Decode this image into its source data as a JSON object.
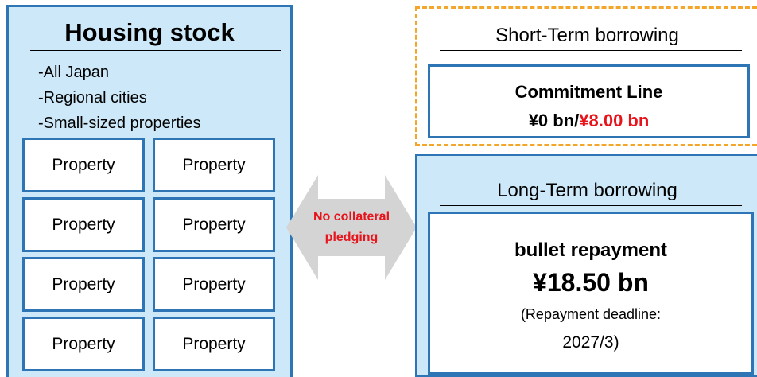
{
  "left": {
    "title": "Housing stock",
    "bullets": [
      "-All Japan",
      "-Regional cities",
      "-Small-sized properties"
    ],
    "properties": [
      "Property",
      "Property",
      "Property",
      "Property",
      "Property",
      "Property",
      "Property",
      "Property"
    ]
  },
  "arrow": {
    "label": [
      "No collateral",
      "pledging"
    ]
  },
  "short_term": {
    "heading": "Short-Term borrowing",
    "box": {
      "title": "Commitment Line",
      "amount_used": "¥0 bn/",
      "amount_limit": "¥8.00 bn"
    }
  },
  "long_term": {
    "heading": "Long-Term borrowing",
    "box": {
      "title": "bullet repayment",
      "amount": "¥18.50 bn",
      "note": [
        "(Repayment deadline:",
        "2027/3)"
      ]
    }
  }
}
